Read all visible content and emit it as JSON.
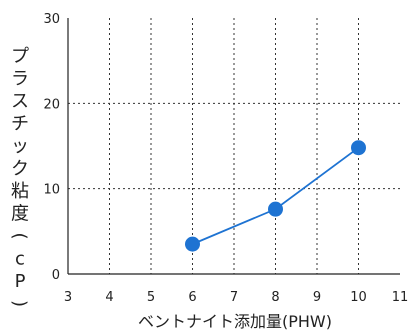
{
  "chart_data": {
    "type": "line",
    "title": "",
    "xlabel": "ベントナイト添加量(PHW)",
    "ylabel": "プラスチック粘度(cP)",
    "xlim": [
      3,
      11
    ],
    "ylim": [
      0,
      30
    ],
    "xticks": [
      "3",
      "4",
      "5",
      "6",
      "7",
      "8",
      "9",
      "10",
      "11"
    ],
    "yticks": [
      "0",
      "10",
      "20",
      "30"
    ],
    "grid": true,
    "series": [
      {
        "x": [
          6,
          8,
          10
        ],
        "y": [
          3.5,
          7.6,
          14.8
        ],
        "color": "#1e73d2"
      }
    ]
  }
}
